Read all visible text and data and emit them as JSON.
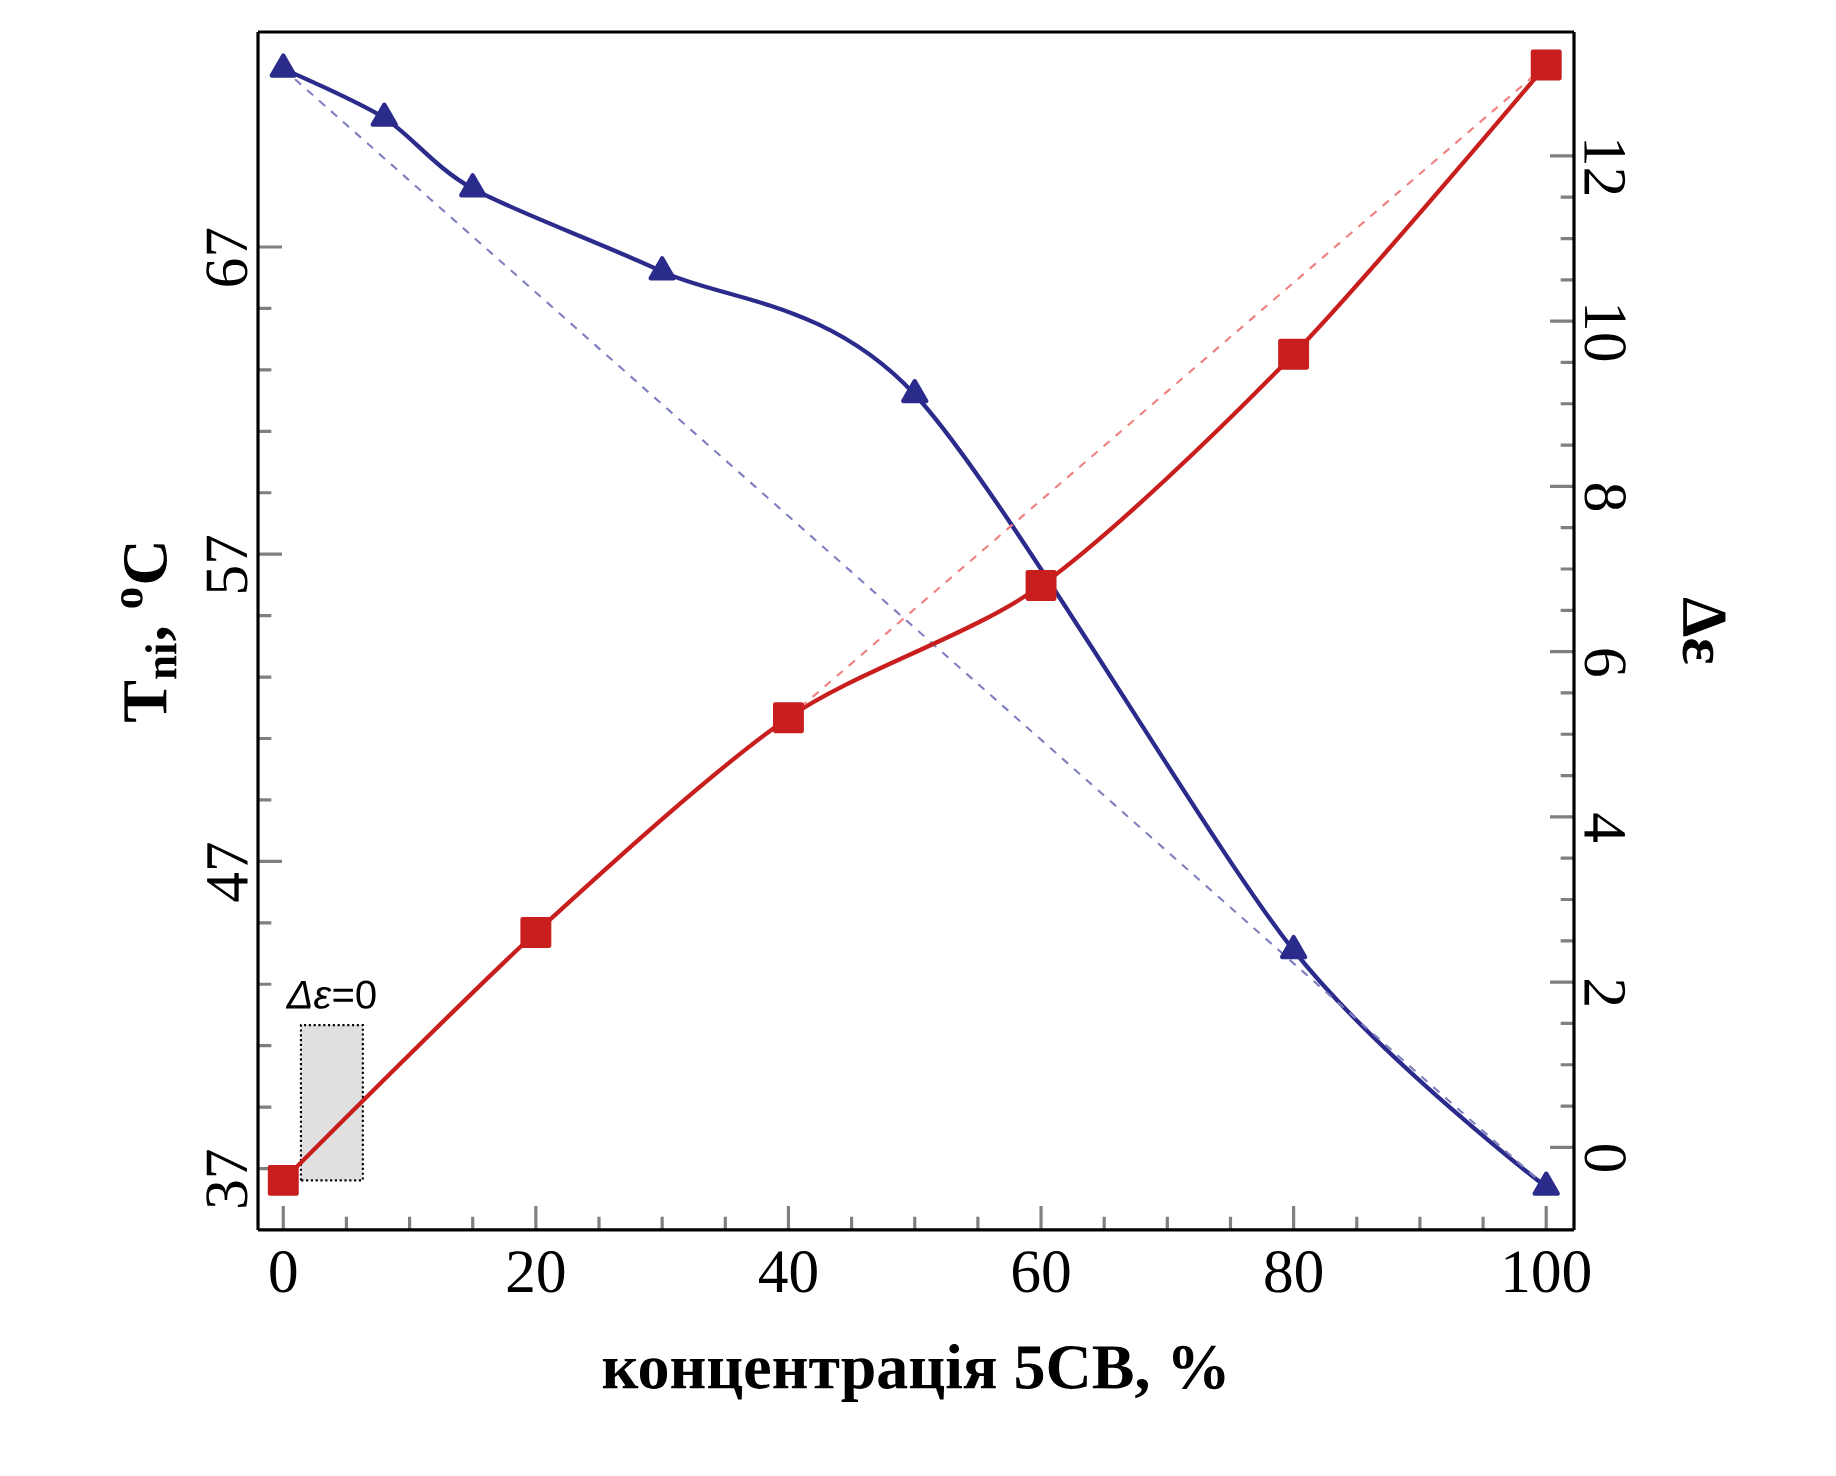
{
  "chart_data": {
    "type": "line",
    "xlabel": "концентрація 5CB, %",
    "ylabel": "T$_{ni}$, $^{o}$C",
    "y2label": "Δε",
    "series": [
      {
        "x": [
          0,
          8,
          15,
          30,
          50,
          80,
          100
        ],
        "values": [
          72.8,
          71.2,
          68.9,
          66.2,
          62.2,
          44.1,
          36.4
        ],
        "color": "#2b2b8c",
        "marker": "triangle",
        "line_style": "solid"
      },
      {
        "x": [
          0,
          20,
          40,
          60,
          80,
          100
        ],
        "values": [
          -0.4,
          2.6,
          5.2,
          6.8,
          9.6,
          13.1
        ],
        "color": "#c81e1e",
        "marker": "square",
        "line_style": "solid",
        "axis": "y2"
      },
      {
        "x": [
          0,
          100
        ],
        "values": [
          72.8,
          36.4
        ],
        "color": "#8080c0",
        "marker": "none",
        "line_style": "dashed"
      },
      {
        "x": [
          40,
          100
        ],
        "values": [
          5.2,
          13.1
        ],
        "color": "#f08080",
        "marker": "none",
        "line_style": "dashed",
        "axis": "y2"
      }
    ],
    "xlim": [
      -2,
      102.2
    ],
    "xticks": [
      0,
      20,
      40,
      60,
      80,
      100
    ],
    "ylim": [
      35,
      74
    ],
    "yticks": [
      37,
      47,
      57,
      67
    ],
    "y2lim": [
      -1,
      13.5
    ],
    "y2ticks": [
      0,
      2,
      4,
      6,
      8,
      10,
      12
    ],
    "bands": [
      {
        "axis": "x",
        "from": 1.4,
        "to": 6.3,
        "label": "*Δε*=0",
        "color": "#e0e0e0"
      }
    ],
    "grid": false
  }
}
